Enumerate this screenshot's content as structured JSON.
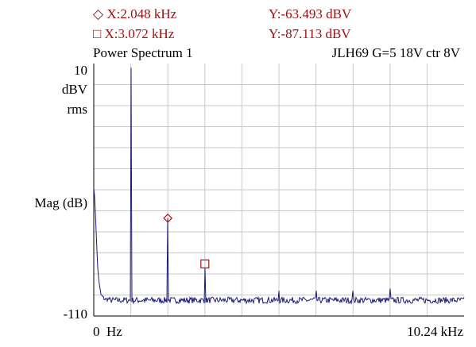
{
  "markers": {
    "m1": {
      "symbol": "◇",
      "x_text": "X:2.048 kHz",
      "y_text": "Y:-63.493 dBV"
    },
    "m2": {
      "symbol": "□",
      "x_text": "X:3.072 kHz",
      "y_text": "Y:-87.113 dBV"
    }
  },
  "plot": {
    "title": "Power Spectrum 1",
    "subtitle": "JLH69 G=5 18V ctr 8V",
    "y_top": "10",
    "y_unit_line1": "dBV",
    "y_unit_line2": "rms",
    "y_axis_label": "Mag (dB)",
    "y_bottom": "-110",
    "x_left": "0",
    "x_left_unit": "Hz",
    "x_right": "10.24 kHz"
  },
  "colors": {
    "trace": "#1a1a7a",
    "grid": "#c8c8c8",
    "axis": "#000000",
    "marker": "#b01010"
  },
  "chart_data": {
    "type": "line",
    "title": "Power Spectrum 1",
    "ylabel": "Mag (dB)",
    "xlim_hz": [
      0,
      10240
    ],
    "ylim_dbv": [
      -110,
      10
    ],
    "grid": true,
    "series": [
      {
        "x_khz": [
          0.0,
          0.05,
          0.1,
          0.15,
          0.2,
          0.3,
          0.45,
          0.6,
          0.8,
          0.95,
          1.024,
          1.1,
          1.3,
          1.6,
          1.9,
          2.0,
          2.048,
          2.1,
          2.3,
          2.6,
          2.95,
          3.072,
          3.2,
          3.5,
          4.0,
          4.5,
          5.0,
          5.12,
          5.3,
          5.7,
          6.0,
          6.144,
          6.3,
          6.8,
          7.168,
          7.4,
          7.8,
          8.192,
          8.5,
          8.9,
          9.216,
          9.5,
          9.8,
          10.24
        ],
        "y_dbv": [
          -48,
          -62,
          -85,
          -95,
          -100,
          -102,
          -102,
          -103,
          -103,
          -103,
          8,
          -103,
          -103,
          -103,
          -103,
          -103,
          -63.493,
          -103,
          -103,
          -103,
          -103,
          -87.113,
          -103,
          -103,
          -103,
          -103,
          -103,
          -98,
          -103,
          -103,
          -103,
          -98,
          -103,
          -103,
          -98,
          -103,
          -103,
          -97,
          -103,
          -103,
          -101,
          -103,
          -103,
          -103
        ]
      }
    ],
    "markers": [
      {
        "x_khz": 2.048,
        "y_dbv": -63.493,
        "shape": "diamond"
      },
      {
        "x_khz": 3.072,
        "y_dbv": -87.113,
        "shape": "square"
      }
    ]
  }
}
